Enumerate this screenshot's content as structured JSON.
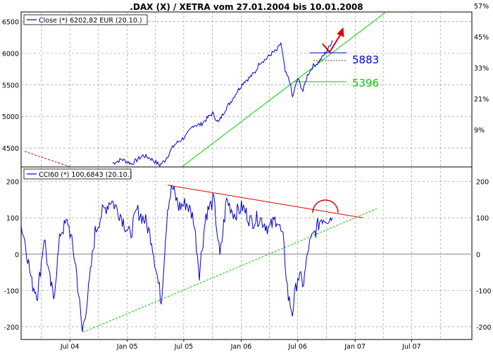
{
  "title": ".DAX (X) / XETRA vom 27.01.2004 bis 10.01.2008",
  "colors": {
    "price_line": "#0000cc",
    "trend_green": "#00cc00",
    "trend_red": "#dd0000",
    "grid": "#888888",
    "zero_line": "#aaaaaa"
  },
  "chart_data": [
    {
      "type": "line",
      "name": "price-panel",
      "legend": "Close (*) 6202,82 EUR (20.10.)",
      "ylim": [
        4200,
        6650
      ],
      "y_ticks_left": [
        "6500",
        "6000",
        "5500",
        "5000",
        "4500"
      ],
      "y_ticks_right": [
        "57%",
        "45%",
        "33%",
        "21%",
        "9%"
      ],
      "x_ticks": [
        "Jul 04",
        "Jan 05",
        "Jul 05",
        "Jan 06",
        "Jul 06",
        "Jan 07",
        "Jul 07"
      ],
      "series": [
        {
          "values": [
            [
              "2004-11-15",
              4260
            ],
            [
              "2004-12-15",
              4320
            ],
            [
              "2005-01-15",
              4250
            ],
            [
              "2005-02-20",
              4380
            ],
            [
              "2005-03-15",
              4340
            ],
            [
              "2005-04-15",
              4230
            ],
            [
              "2005-05-01",
              4300
            ],
            [
              "2005-06-01",
              4550
            ],
            [
              "2005-06-20",
              4620
            ],
            [
              "2005-07-10",
              4700
            ],
            [
              "2005-08-01",
              4860
            ],
            [
              "2005-08-25",
              4870
            ],
            [
              "2005-09-10",
              4950
            ],
            [
              "2005-10-01",
              5050
            ],
            [
              "2005-10-20",
              4900
            ],
            [
              "2005-11-10",
              5100
            ],
            [
              "2005-12-01",
              5250
            ],
            [
              "2005-12-20",
              5400
            ],
            [
              "2006-01-10",
              5550
            ],
            [
              "2006-01-25",
              5600
            ],
            [
              "2006-02-15",
              5700
            ],
            [
              "2006-03-01",
              5850
            ],
            [
              "2006-03-20",
              5900
            ],
            [
              "2006-04-10",
              6000
            ],
            [
              "2006-04-25",
              6040
            ],
            [
              "2006-05-08",
              6160
            ],
            [
              "2006-05-22",
              5700
            ],
            [
              "2006-06-06",
              5550
            ],
            [
              "2006-06-14",
              5300
            ],
            [
              "2006-07-01",
              5600
            ],
            [
              "2006-07-18",
              5400
            ],
            [
              "2006-08-01",
              5650
            ],
            [
              "2006-08-20",
              5800
            ],
            [
              "2006-09-05",
              5850
            ],
            [
              "2006-09-20",
              5950
            ],
            [
              "2006-10-05",
              6050
            ],
            [
              "2006-10-20",
              6202
            ]
          ]
        }
      ],
      "annotations": [
        "5883",
        "5396"
      ]
    },
    {
      "type": "line",
      "name": "cci-panel",
      "legend": "CCI60 (*) 100,6843 (20.10.)",
      "ylim": [
        -235,
        240
      ],
      "y_ticks_left": [
        "200",
        "100",
        "0",
        "-100",
        "-200"
      ],
      "y_ticks_right": [
        "200",
        "100",
        "0",
        "-100",
        "-200"
      ],
      "series": [
        {
          "values": [
            [
              "2004-01-27",
              80
            ],
            [
              "2004-02-10",
              30
            ],
            [
              "2004-03-01",
              -80
            ],
            [
              "2004-03-20",
              -110
            ],
            [
              "2004-04-10",
              50
            ],
            [
              "2004-04-25",
              -60
            ],
            [
              "2004-05-10",
              -120
            ],
            [
              "2004-06-01",
              60
            ],
            [
              "2004-06-25",
              90
            ],
            [
              "2004-07-20",
              -30
            ],
            [
              "2004-08-10",
              -215
            ],
            [
              "2004-08-30",
              -100
            ],
            [
              "2004-09-20",
              60
            ],
            [
              "2004-10-10",
              110
            ],
            [
              "2004-11-10",
              150
            ],
            [
              "2004-12-10",
              110
            ],
            [
              "2005-01-10",
              50
            ],
            [
              "2005-02-01",
              120
            ],
            [
              "2005-03-01",
              90
            ],
            [
              "2005-03-20",
              40
            ],
            [
              "2005-04-05",
              -50
            ],
            [
              "2005-04-20",
              -130
            ],
            [
              "2005-05-10",
              130
            ],
            [
              "2005-05-25",
              185
            ],
            [
              "2005-06-15",
              130
            ],
            [
              "2005-07-10",
              140
            ],
            [
              "2005-08-01",
              100
            ],
            [
              "2005-08-20",
              -50
            ],
            [
              "2005-09-10",
              110
            ],
            [
              "2005-10-05",
              150
            ],
            [
              "2005-10-25",
              -10
            ],
            [
              "2005-11-15",
              150
            ],
            [
              "2005-12-10",
              110
            ],
            [
              "2006-01-05",
              130
            ],
            [
              "2006-02-01",
              90
            ],
            [
              "2006-03-01",
              100
            ],
            [
              "2006-04-01",
              70
            ],
            [
              "2006-04-25",
              100
            ],
            [
              "2006-05-15",
              40
            ],
            [
              "2006-06-01",
              -120
            ],
            [
              "2006-06-14",
              -160
            ],
            [
              "2006-07-01",
              -60
            ],
            [
              "2006-07-20",
              -80
            ],
            [
              "2006-08-05",
              20
            ],
            [
              "2006-08-25",
              60
            ],
            [
              "2006-09-15",
              100
            ],
            [
              "2006-10-20",
              100
            ]
          ]
        }
      ]
    }
  ]
}
